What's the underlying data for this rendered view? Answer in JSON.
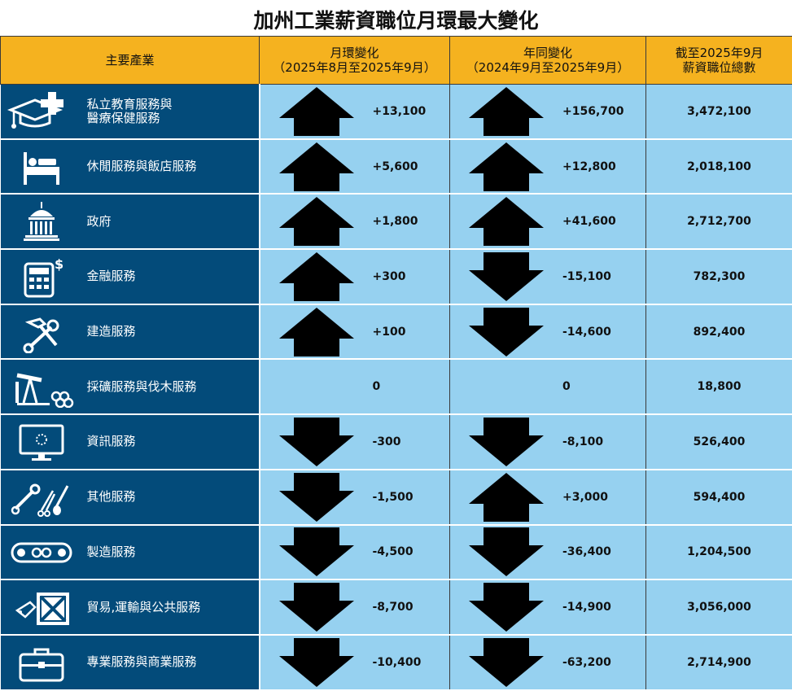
{
  "title": "加州工業薪資職位月環最大變化",
  "headers": {
    "industry": "主要產業",
    "mom": "月環變化\n（2025年8月至2025年9月）",
    "yoy": "年同變化\n（2024年9月至2025年9月）",
    "total": "截至2025年9月\n薪資職位總數"
  },
  "colors": {
    "header_bg": "#f5b21f",
    "industry_bg": "#034b7a",
    "value_bg": "#96d1f0",
    "arrow": "#000000"
  },
  "rows": [
    {
      "label": "私立教育服務與\n醫療保健服務",
      "icon": "graduation-cap-medical-cross-icon",
      "mom_dir": "up",
      "mom": "+13,100",
      "yoy_dir": "up",
      "yoy": "+156,700",
      "total": "3,472,100"
    },
    {
      "label": "休閒服務與飯店服務",
      "icon": "bed-icon",
      "mom_dir": "up",
      "mom": "+5,600",
      "yoy_dir": "up",
      "yoy": "+12,800",
      "total": "2,018,100"
    },
    {
      "label": "政府",
      "icon": "capitol-building-icon",
      "mom_dir": "up",
      "mom": "+1,800",
      "yoy_dir": "up",
      "yoy": "+41,600",
      "total": "2,712,700"
    },
    {
      "label": "金融服務",
      "icon": "calculator-dollar-icon",
      "mom_dir": "up",
      "mom": "+300",
      "yoy_dir": "down",
      "yoy": "-15,100",
      "total": "782,300"
    },
    {
      "label": "建造服務",
      "icon": "hammer-wrench-icon",
      "mom_dir": "up",
      "mom": "+100",
      "yoy_dir": "down",
      "yoy": "-14,600",
      "total": "892,400"
    },
    {
      "label": "採礦服務與伐木服務",
      "icon": "oil-pump-logs-icon",
      "mom_dir": "none",
      "mom": "0",
      "yoy_dir": "none",
      "yoy": "0",
      "total": "18,800"
    },
    {
      "label": "資訊服務",
      "icon": "computer-monitor-icon",
      "mom_dir": "down",
      "mom": "-300",
      "yoy_dir": "down",
      "yoy": "-8,100",
      "total": "526,400"
    },
    {
      "label": "其他服務",
      "icon": "tools-scissors-brush-icon",
      "mom_dir": "down",
      "mom": "-1,500",
      "yoy_dir": "up",
      "yoy": "+3,000",
      "total": "594,400"
    },
    {
      "label": "製造服務",
      "icon": "conveyor-belt-gears-icon",
      "mom_dir": "down",
      "mom": "-4,500",
      "yoy_dir": "down",
      "yoy": "-36,400",
      "total": "1,204,500"
    },
    {
      "label": "貿易,運輸與公共服務",
      "icon": "crate-tag-icon",
      "mom_dir": "down",
      "mom": "-8,700",
      "yoy_dir": "down",
      "yoy": "-14,900",
      "total": "3,056,000"
    },
    {
      "label": "專業服務與商業服務",
      "icon": "briefcase-icon",
      "mom_dir": "down",
      "mom": "-10,400",
      "yoy_dir": "down",
      "yoy": "-63,200",
      "total": "2,714,900"
    }
  ],
  "chart_data": {
    "type": "table",
    "title": "加州工業薪資職位月環最大變化",
    "columns": [
      "主要產業",
      "月環變化（2025年8月至2025年9月）",
      "年同變化（2024年9月至2025年9月）",
      "截至2025年9月薪資職位總數"
    ],
    "categories": [
      "私立教育服務與醫療保健服務",
      "休閒服務與飯店服務",
      "政府",
      "金融服務",
      "建造服務",
      "採礦服務與伐木服務",
      "資訊服務",
      "其他服務",
      "製造服務",
      "貿易,運輸與公共服務",
      "專業服務與商業服務"
    ],
    "series": [
      {
        "name": "月環變化（2025年8月至2025年9月）",
        "values": [
          13100,
          5600,
          1800,
          300,
          100,
          0,
          -300,
          -1500,
          -4500,
          -8700,
          -10400
        ]
      },
      {
        "name": "年同變化（2024年9月至2025年9月）",
        "values": [
          156700,
          12800,
          41600,
          -15100,
          -14600,
          0,
          -8100,
          3000,
          -36400,
          -14900,
          -63200
        ]
      },
      {
        "name": "截至2025年9月薪資職位總數",
        "values": [
          3472100,
          2018100,
          2712700,
          782300,
          892400,
          18800,
          526400,
          594400,
          1204500,
          3056000,
          2714900
        ]
      }
    ]
  }
}
